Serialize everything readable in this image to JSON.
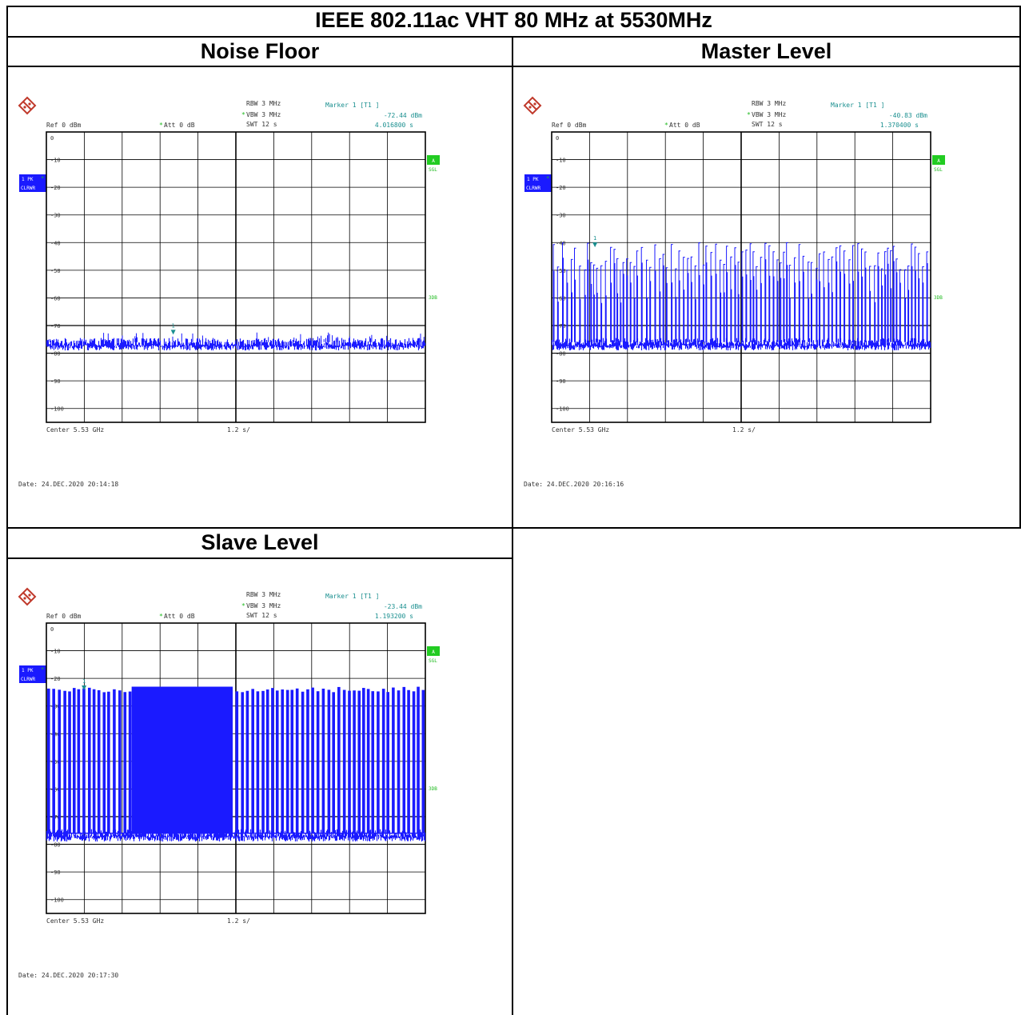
{
  "title": "IEEE 802.11ac VHT 80 MHz at 5530MHz",
  "colors": {
    "trace": "#1a1aff",
    "marker": "#1a8f8f",
    "grid": "#000000",
    "badge_blue": "#1a1aff",
    "badge_green": "#22cc22",
    "label_green": "#22bb22",
    "text": "#333333"
  },
  "icons": {
    "logo": "rohde-schwarz-logo",
    "marker": "marker-triangle-icon"
  },
  "panels": [
    {
      "heading": "Noise Floor",
      "rbw": "RBW 3 MHz",
      "vbw": "VBW 3 MHz",
      "swt": "SWT 12 s",
      "ref": "Ref  0 dBm",
      "att": "Att  0 dB",
      "marker_label": "Marker 1 [T1 ]",
      "marker_level": "-72.44 dBm",
      "marker_time": "4.016800 s",
      "badge_trace": "1 PK",
      "badge_mode": "CLRWR",
      "badge_a": "A",
      "sgl": "SGL",
      "threedb": "3DB",
      "center": "Center 5.53 GHz",
      "span": "1.2 s/",
      "date": "Date: 24.DEC.2020  20:14:18",
      "marker_num": "1",
      "chart_data": {
        "type": "line",
        "profile": "noise",
        "x_unit": "s",
        "xlim": [
          0,
          12
        ],
        "ylim": [
          -105,
          0
        ],
        "y_unit": "dBm",
        "y_ticks": [
          "0",
          "-10",
          "-20",
          "-30",
          "-40",
          "-50",
          "-60",
          "-70",
          "-80",
          "-90",
          "-100"
        ],
        "noise_floor": -76,
        "marker": {
          "x": 4.0168,
          "y": -72.44
        }
      }
    },
    {
      "heading": "Master Level",
      "rbw": "RBW 3 MHz",
      "vbw": "VBW 3 MHz",
      "swt": "SWT 12 s",
      "ref": "Ref  0 dBm",
      "att": "Att  0 dB",
      "marker_label": "Marker 1 [T1 ]",
      "marker_level": "-40.83 dBm",
      "marker_time": "1.370400 s",
      "badge_trace": "1 PK",
      "badge_mode": "CLRWR",
      "badge_a": "A",
      "sgl": "SGL",
      "threedb": "3DB",
      "center": "Center 5.53 GHz",
      "span": "1.2 s/",
      "date": "Date: 24.DEC.2020  20:16:16",
      "marker_num": "1",
      "chart_data": {
        "type": "line",
        "profile": "bursts",
        "x_unit": "s",
        "xlim": [
          0,
          12
        ],
        "ylim": [
          -105,
          0
        ],
        "y_unit": "dBm",
        "y_ticks": [
          "0",
          "-10",
          "-20",
          "-30",
          "-40",
          "-50",
          "-60",
          "-70",
          "-80",
          "-90",
          "-100"
        ],
        "noise_floor": -76,
        "burst_level_range": [
          -50,
          -40
        ],
        "marker": {
          "x": 1.3704,
          "y": -40.83
        }
      }
    },
    {
      "heading": "Slave Level",
      "rbw": "RBW 3 MHz",
      "vbw": "VBW 3 MHz",
      "swt": "SWT 12 s",
      "ref": "Ref  0 dBm",
      "att": "Att  0 dB",
      "marker_label": "Marker 1 [T1 ]",
      "marker_level": "-23.44 dBm",
      "marker_time": "1.193200 s",
      "badge_trace": "1 PK",
      "badge_mode": "CLRWR",
      "badge_a": "A",
      "sgl": "SGL",
      "threedb": "3DB",
      "center": "Center 5.53 GHz",
      "span": "1.2 s/",
      "date": "Date: 24.DEC.2020  20:17:30",
      "marker_num": "1",
      "chart_data": {
        "type": "line",
        "profile": "dense",
        "x_unit": "s",
        "xlim": [
          0,
          12
        ],
        "ylim": [
          -105,
          0
        ],
        "y_unit": "dBm",
        "y_ticks": [
          "0",
          "-10",
          "-20",
          "-30",
          "-40",
          "-50",
          "-60",
          "-70",
          "-80",
          "-90",
          "-100"
        ],
        "noise_floor": -76,
        "burst_level_range": [
          -25,
          -23
        ],
        "continuous_span": [
          2.7,
          5.9
        ],
        "marker": {
          "x": 1.1932,
          "y": -23.44
        }
      }
    }
  ]
}
